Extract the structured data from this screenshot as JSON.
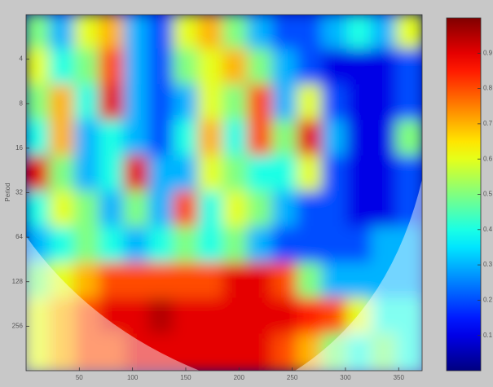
{
  "chart_data": {
    "type": "heatmap",
    "ylabel": "Period",
    "xlim": [
      0,
      372
    ],
    "xticks": [
      50,
      100,
      150,
      200,
      250,
      300,
      350
    ],
    "ylim": [
      2,
      512
    ],
    "yticks": [
      4,
      8,
      16,
      32,
      64,
      128,
      256
    ],
    "ylog": true,
    "yreverse": true,
    "colormap": "jet",
    "clim": [
      0,
      1
    ],
    "cticks": [
      0.1,
      0.2,
      0.3,
      0.4,
      0.5,
      0.6,
      0.7,
      0.8,
      0.9
    ],
    "z": [
      [
        0.5,
        0.3,
        0.6,
        0.7,
        0.3,
        0.2,
        0.6,
        0.7,
        0.5,
        0.3,
        0.2,
        0.2,
        0.3,
        0.4,
        0.3,
        0.6
      ],
      [
        0.6,
        0.4,
        0.5,
        0.8,
        0.3,
        0.2,
        0.5,
        0.6,
        0.7,
        0.5,
        0.3,
        0.2,
        0.1,
        0.1,
        0.1,
        0.2
      ],
      [
        0.5,
        0.7,
        0.4,
        0.9,
        0.3,
        0.2,
        0.3,
        0.6,
        0.5,
        0.8,
        0.3,
        0.6,
        0.2,
        0.1,
        0.1,
        0.2
      ],
      [
        0.4,
        0.7,
        0.3,
        0.4,
        0.3,
        0.2,
        0.4,
        0.7,
        0.4,
        0.8,
        0.5,
        0.9,
        0.3,
        0.1,
        0.1,
        0.5
      ],
      [
        0.9,
        0.5,
        0.3,
        0.4,
        0.9,
        0.3,
        0.3,
        0.6,
        0.5,
        0.4,
        0.4,
        0.6,
        0.2,
        0.1,
        0.1,
        0.2
      ],
      [
        0.4,
        0.6,
        0.5,
        0.3,
        0.5,
        0.3,
        0.8,
        0.4,
        0.6,
        0.5,
        0.3,
        0.2,
        0.2,
        0.1,
        0.1,
        0.2
      ],
      [
        0.3,
        0.4,
        0.5,
        0.4,
        0.3,
        0.4,
        0.5,
        0.4,
        0.5,
        0.3,
        0.2,
        0.2,
        0.2,
        0.2,
        0.3,
        0.3
      ],
      [
        0.5,
        0.6,
        0.7,
        0.8,
        0.8,
        0.8,
        0.8,
        0.8,
        0.9,
        0.9,
        0.8,
        0.5,
        0.3,
        0.3,
        0.3,
        0.3
      ],
      [
        0.6,
        0.7,
        0.8,
        0.9,
        0.9,
        0.95,
        0.9,
        0.9,
        0.9,
        0.9,
        0.9,
        0.85,
        0.8,
        0.6,
        0.4,
        0.4
      ],
      [
        0.6,
        0.7,
        0.8,
        0.8,
        0.9,
        0.9,
        0.9,
        0.9,
        0.9,
        0.9,
        0.8,
        0.7,
        0.5,
        0.4,
        0.5,
        0.4
      ]
    ]
  }
}
